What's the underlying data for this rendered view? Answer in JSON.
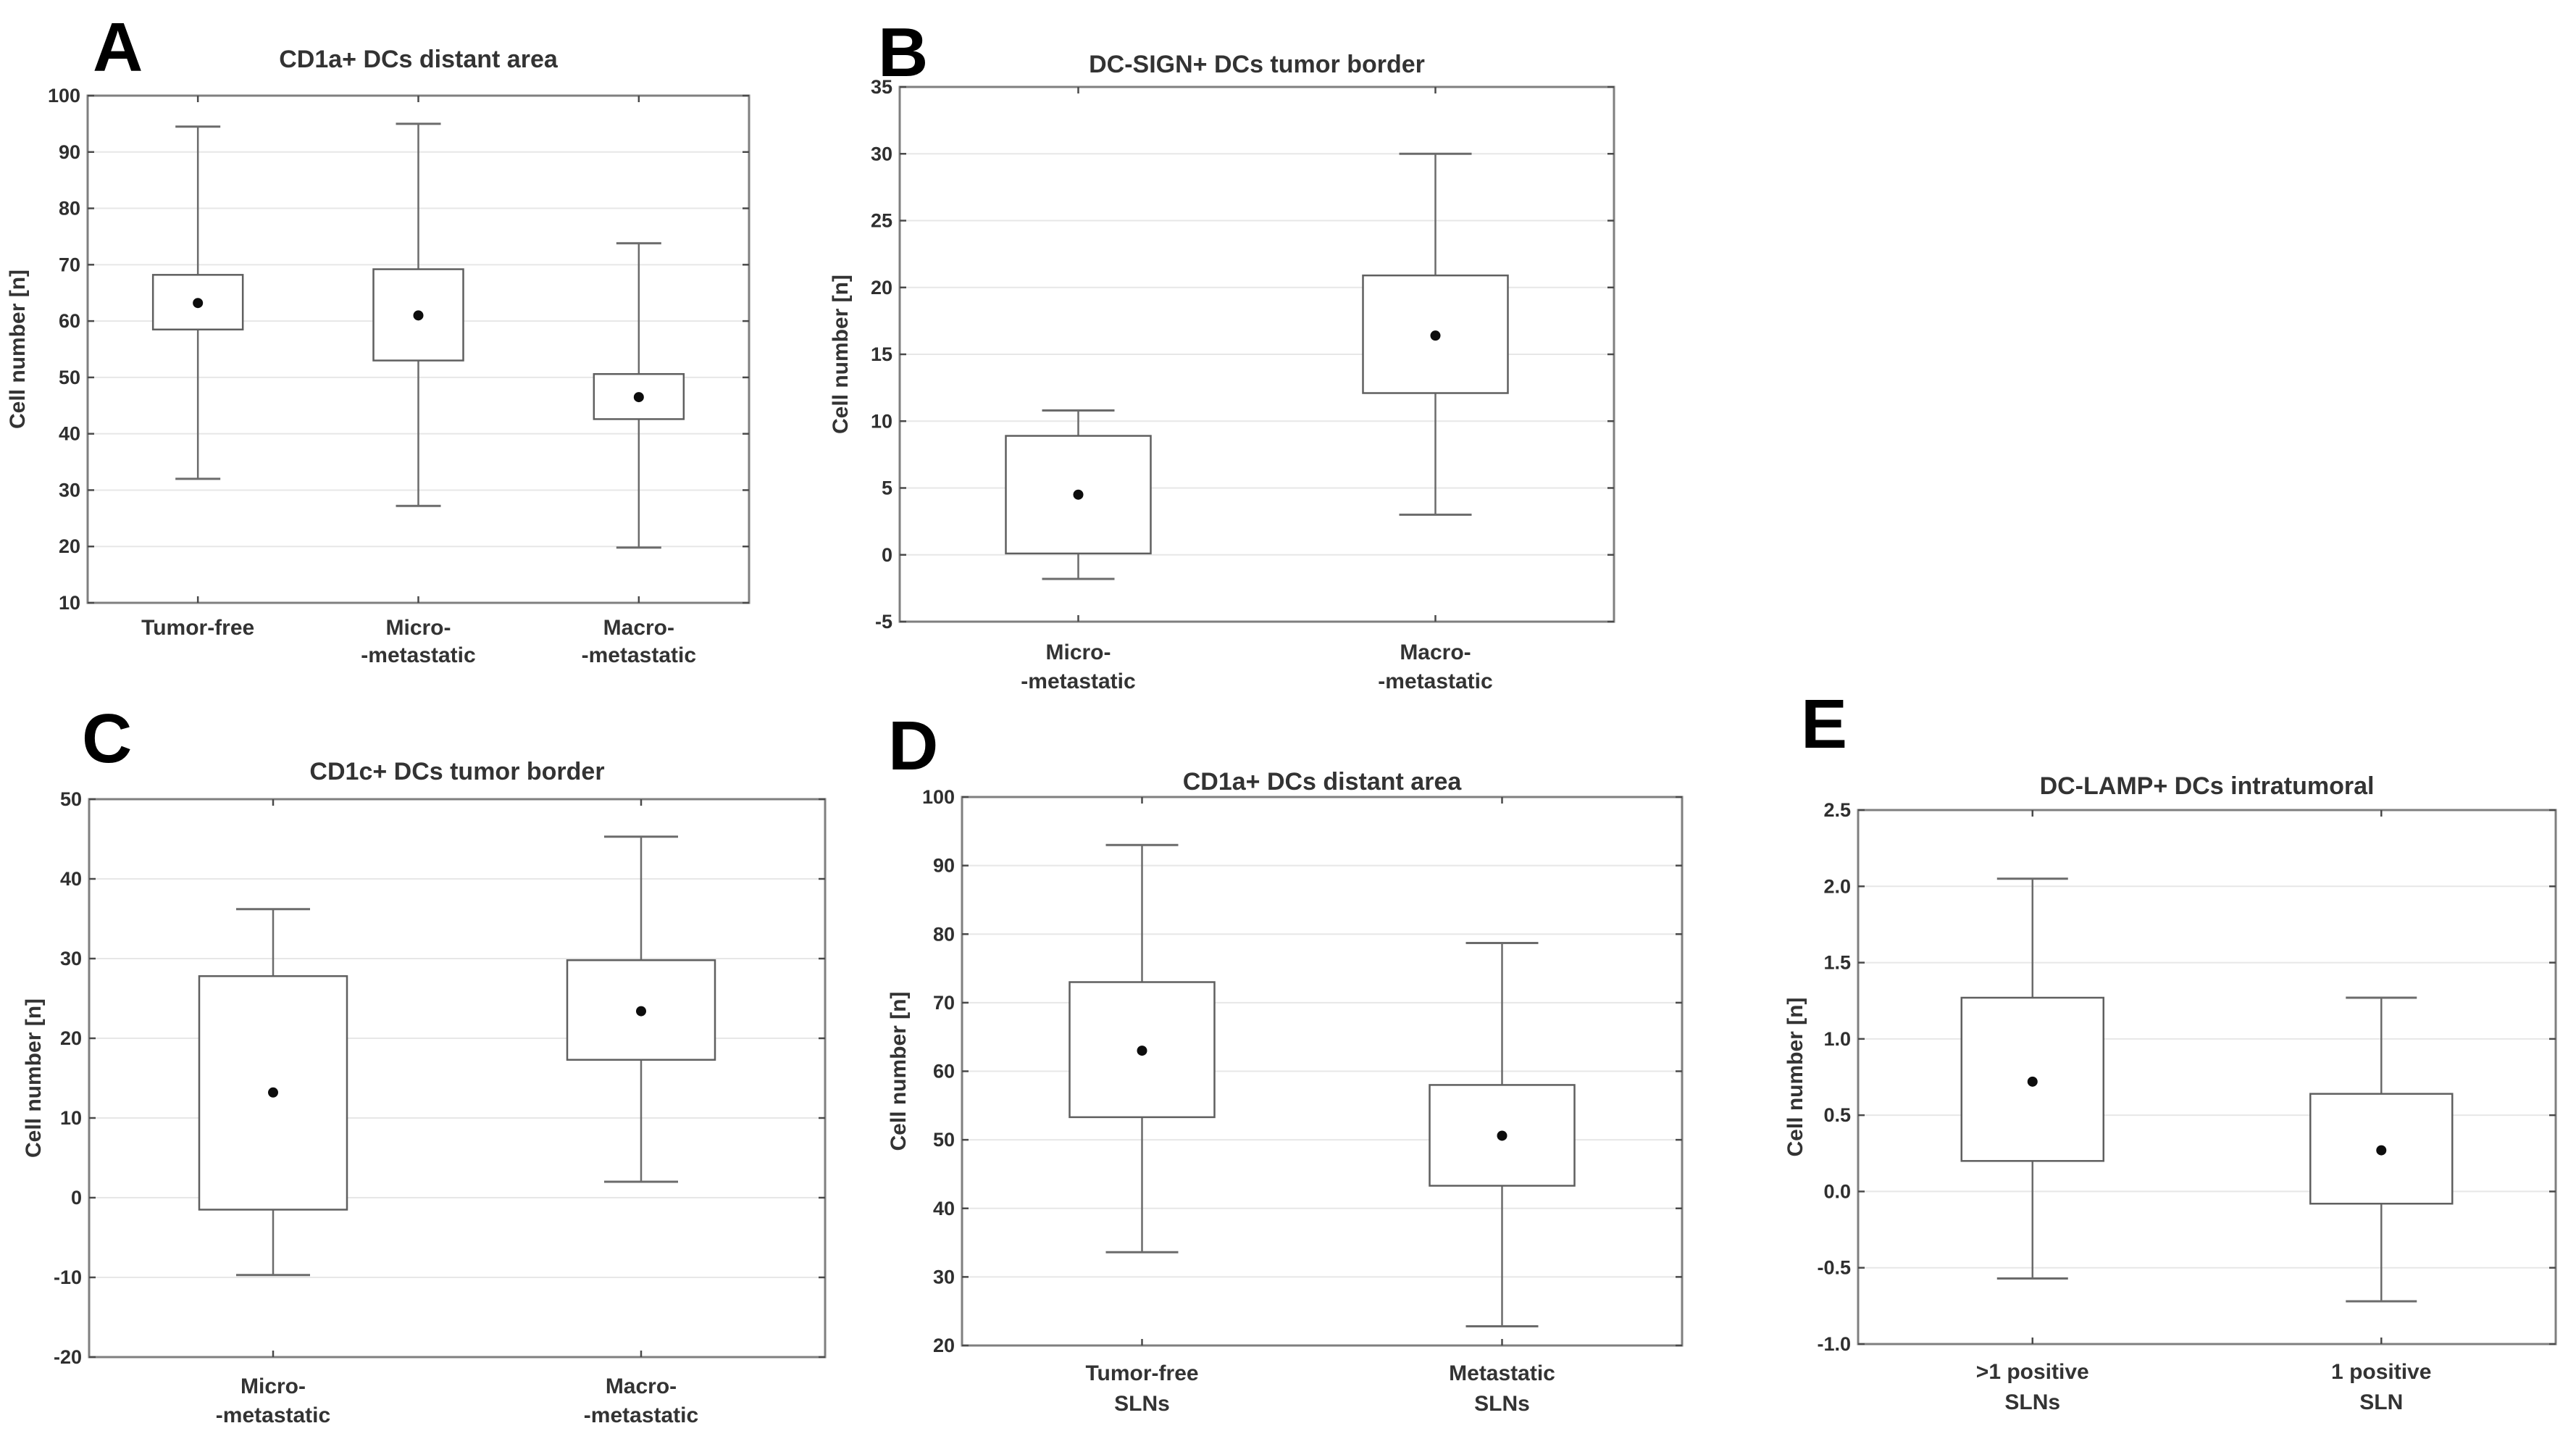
{
  "figure": {
    "background": "#ffffff",
    "colors": {
      "frame": "#7f7f7f",
      "grid": "#e7e7e7",
      "tick": "#4a4a4a",
      "box_border": "#5f5f5f",
      "box_fill": "#ffffff",
      "whisker": "#6b6b6b",
      "mean_dot": "#0d0d0d",
      "text": "#333333",
      "tick_text": "#2f2f2f",
      "letter": "#000000"
    }
  },
  "chart_data": [
    {
      "panel": "A",
      "type": "box",
      "title": "CD1a+ DCs distant area",
      "ylabel": "Cell number [n]",
      "ylim": [
        10,
        100
      ],
      "ytick_step": 10,
      "ytick_decimals": 0,
      "grid": "horizontal",
      "legend": "none",
      "categories": [
        [
          "Tumor-free"
        ],
        [
          "Micro-",
          "-metastatic"
        ],
        [
          "Macro-",
          "-metastatic"
        ]
      ],
      "series": [
        {
          "category": "Tumor-free",
          "whisker_low": 32.0,
          "q1": 58.5,
          "mean": 63.2,
          "q3": 68.2,
          "whisker_high": 94.5
        },
        {
          "category": "Micro--metastatic",
          "whisker_low": 27.2,
          "q1": 53.0,
          "mean": 61.0,
          "q3": 69.2,
          "whisker_high": 95.0
        },
        {
          "category": "Macro--metastatic",
          "whisker_low": 19.8,
          "q1": 42.6,
          "mean": 46.5,
          "q3": 50.6,
          "whisker_high": 73.8
        }
      ]
    },
    {
      "panel": "B",
      "type": "box",
      "title": "DC-SIGN+ DCs tumor border",
      "ylabel": "Cell number [n]",
      "ylim": [
        -5,
        35
      ],
      "ytick_step": 5,
      "ytick_decimals": 0,
      "grid": "horizontal",
      "legend": "none",
      "categories": [
        [
          "Micro-",
          "-metastatic"
        ],
        [
          "Macro-",
          "-metastatic"
        ]
      ],
      "series": [
        {
          "category": "Micro--metastatic",
          "whisker_low": -1.8,
          "q1": 0.1,
          "mean": 4.5,
          "q3": 8.9,
          "whisker_high": 10.8
        },
        {
          "category": "Macro--metastatic",
          "whisker_low": 3.0,
          "q1": 12.1,
          "mean": 16.4,
          "q3": 20.9,
          "whisker_high": 30.0
        }
      ]
    },
    {
      "panel": "C",
      "type": "box",
      "title": "CD1c+ DCs tumor border",
      "ylabel": "Cell number [n]",
      "ylim": [
        -20,
        50
      ],
      "ytick_step": 10,
      "ytick_decimals": 0,
      "grid": "horizontal",
      "legend": "none",
      "categories": [
        [
          "Micro-",
          "-metastatic"
        ],
        [
          "Macro-",
          "-metastatic"
        ]
      ],
      "series": [
        {
          "category": "Micro--metastatic",
          "whisker_low": -9.7,
          "q1": -1.5,
          "mean": 13.2,
          "q3": 27.8,
          "whisker_high": 36.2
        },
        {
          "category": "Macro--metastatic",
          "whisker_low": 2.0,
          "q1": 17.3,
          "mean": 23.4,
          "q3": 29.8,
          "whisker_high": 45.3
        }
      ]
    },
    {
      "panel": "D",
      "type": "box",
      "title": "CD1a+ DCs distant area",
      "ylabel": "Cell number [n]",
      "ylim": [
        20,
        100
      ],
      "ytick_step": 10,
      "ytick_decimals": 0,
      "grid": "horizontal",
      "legend": "none",
      "categories": [
        [
          "Tumor-free",
          "SLNs"
        ],
        [
          "Metastatic",
          "SLNs"
        ]
      ],
      "series": [
        {
          "category": "Tumor-free SLNs",
          "whisker_low": 33.6,
          "q1": 53.3,
          "mean": 63.0,
          "q3": 73.0,
          "whisker_high": 93.0
        },
        {
          "category": "Metastatic SLNs",
          "whisker_low": 22.8,
          "q1": 43.3,
          "mean": 50.6,
          "q3": 58.0,
          "whisker_high": 78.7
        }
      ]
    },
    {
      "panel": "E",
      "type": "box",
      "title": "DC-LAMP+ DCs intratumoral",
      "ylabel": "Cell number [n]",
      "ylim": [
        -1.0,
        2.5
      ],
      "ytick_step": 0.5,
      "ytick_decimals": 1,
      "grid": "horizontal",
      "legend": "none",
      "categories": [
        [
          ">1 positive",
          "SLNs"
        ],
        [
          "1 positive",
          "SLN"
        ]
      ],
      "series": [
        {
          "category": ">1 positive SLNs",
          "whisker_low": -0.57,
          "q1": 0.2,
          "mean": 0.72,
          "q3": 1.27,
          "whisker_high": 2.05
        },
        {
          "category": "1 positive SLN",
          "whisker_low": -0.72,
          "q1": -0.08,
          "mean": 0.27,
          "q3": 0.64,
          "whisker_high": 1.27
        }
      ]
    }
  ]
}
